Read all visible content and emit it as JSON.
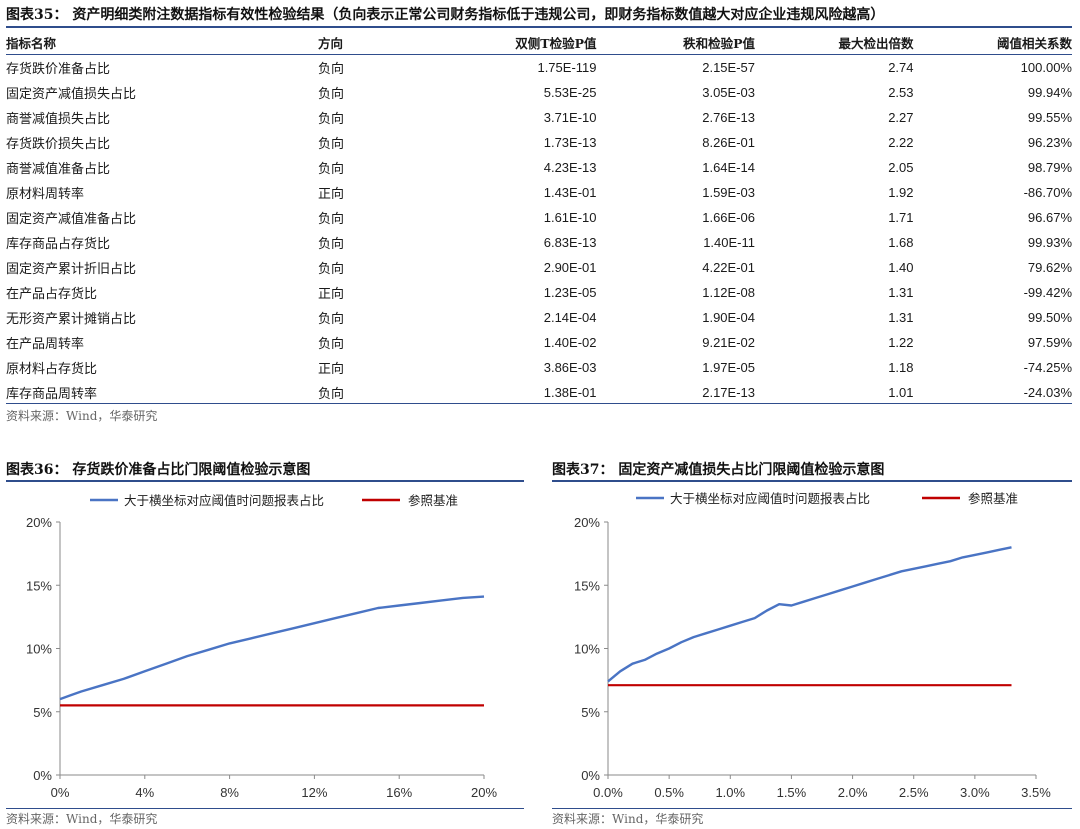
{
  "table35": {
    "title": "图表35：  资产明细类附注数据指标有效性检验结果（负向表示正常公司财务指标低于违规公司，即财务指标数值越大对应企业违规风险越高）",
    "headers": [
      "指标名称",
      "方向",
      "双侧T检验P值",
      "秩和检验P值",
      "最大检出倍数",
      "阈值相关系数"
    ],
    "rows": [
      [
        "存货跌价准备占比",
        "负向",
        "1.75E-119",
        "2.15E-57",
        "2.74",
        "100.00%"
      ],
      [
        "固定资产减值损失占比",
        "负向",
        "5.53E-25",
        "3.05E-03",
        "2.53",
        "99.94%"
      ],
      [
        "商誉减值损失占比",
        "负向",
        "3.71E-10",
        "2.76E-13",
        "2.27",
        "99.55%"
      ],
      [
        "存货跌价损失占比",
        "负向",
        "1.73E-13",
        "8.26E-01",
        "2.22",
        "96.23%"
      ],
      [
        "商誉减值准备占比",
        "负向",
        "4.23E-13",
        "1.64E-14",
        "2.05",
        "98.79%"
      ],
      [
        "原材料周转率",
        "正向",
        "1.43E-01",
        "1.59E-03",
        "1.92",
        "-86.70%"
      ],
      [
        "固定资产减值准备占比",
        "负向",
        "1.61E-10",
        "1.66E-06",
        "1.71",
        "96.67%"
      ],
      [
        "库存商品占存货比",
        "负向",
        "6.83E-13",
        "1.40E-11",
        "1.68",
        "99.93%"
      ],
      [
        "固定资产累计折旧占比",
        "负向",
        "2.90E-01",
        "4.22E-01",
        "1.40",
        "79.62%"
      ],
      [
        "在产品占存货比",
        "正向",
        "1.23E-05",
        "1.12E-08",
        "1.31",
        "-99.42%"
      ],
      [
        "无形资产累计摊销占比",
        "负向",
        "2.14E-04",
        "1.90E-04",
        "1.31",
        "99.50%"
      ],
      [
        "在产品周转率",
        "负向",
        "1.40E-02",
        "9.21E-02",
        "1.22",
        "97.59%"
      ],
      [
        "原材料占存货比",
        "正向",
        "3.86E-03",
        "1.97E-05",
        "1.18",
        "-74.25%"
      ],
      [
        "库存商品周转率",
        "负向",
        "1.38E-01",
        "2.17E-13",
        "1.01",
        "-24.03%"
      ]
    ],
    "source": "资料来源：Wind，华泰研究"
  },
  "chart_data": [
    {
      "type": "line",
      "title": "图表36：  存货跌价准备占比门限阈值检验示意图",
      "xlim": [
        0,
        0.2
      ],
      "ylim": [
        0,
        0.2
      ],
      "xticks": [
        "0%",
        "4%",
        "8%",
        "12%",
        "16%",
        "20%"
      ],
      "yticks": [
        "0%",
        "5%",
        "10%",
        "15%",
        "20%"
      ],
      "series": [
        {
          "name": "大于横坐标对应阈值时问题报表占比",
          "color": "#4a74c4",
          "x": [
            0,
            0.005,
            0.01,
            0.02,
            0.03,
            0.04,
            0.05,
            0.06,
            0.07,
            0.08,
            0.09,
            0.1,
            0.11,
            0.12,
            0.13,
            0.14,
            0.15,
            0.16,
            0.17,
            0.18,
            0.19,
            0.2
          ],
          "y": [
            0.06,
            0.063,
            0.066,
            0.071,
            0.076,
            0.082,
            0.088,
            0.094,
            0.099,
            0.104,
            0.108,
            0.112,
            0.116,
            0.12,
            0.124,
            0.128,
            0.132,
            0.134,
            0.136,
            0.138,
            0.14,
            0.141
          ]
        },
        {
          "name": "参照基准",
          "color": "#c00000",
          "x": [
            0,
            0.2
          ],
          "y": [
            0.055,
            0.055
          ]
        }
      ],
      "source": "资料来源：Wind，华泰研究"
    },
    {
      "type": "line",
      "title": "图表37：  固定资产减值损失占比门限阈值检验示意图",
      "xlim": [
        0,
        0.035
      ],
      "ylim": [
        0,
        0.2
      ],
      "xticks": [
        "0.0%",
        "0.5%",
        "1.0%",
        "1.5%",
        "2.0%",
        "2.5%",
        "3.0%",
        "3.5%"
      ],
      "yticks": [
        "0%",
        "5%",
        "10%",
        "15%",
        "20%"
      ],
      "series": [
        {
          "name": "大于横坐标对应阈值时问题报表占比",
          "color": "#4a74c4",
          "x": [
            0,
            0.001,
            0.002,
            0.003,
            0.004,
            0.005,
            0.006,
            0.007,
            0.008,
            0.009,
            0.01,
            0.011,
            0.012,
            0.013,
            0.014,
            0.015,
            0.016,
            0.017,
            0.018,
            0.019,
            0.02,
            0.021,
            0.022,
            0.023,
            0.024,
            0.025,
            0.026,
            0.027,
            0.028,
            0.029,
            0.03,
            0.031,
            0.032,
            0.033
          ],
          "y": [
            0.074,
            0.082,
            0.088,
            0.091,
            0.096,
            0.1,
            0.105,
            0.109,
            0.112,
            0.115,
            0.118,
            0.121,
            0.124,
            0.13,
            0.135,
            0.134,
            0.137,
            0.14,
            0.143,
            0.146,
            0.149,
            0.152,
            0.155,
            0.158,
            0.161,
            0.163,
            0.165,
            0.167,
            0.169,
            0.172,
            0.174,
            0.176,
            0.178,
            0.18
          ]
        },
        {
          "name": "参照基准",
          "color": "#c00000",
          "x": [
            0,
            0.033
          ],
          "y": [
            0.071,
            0.071
          ]
        }
      ],
      "source": "资料来源：Wind，华泰研究"
    }
  ]
}
